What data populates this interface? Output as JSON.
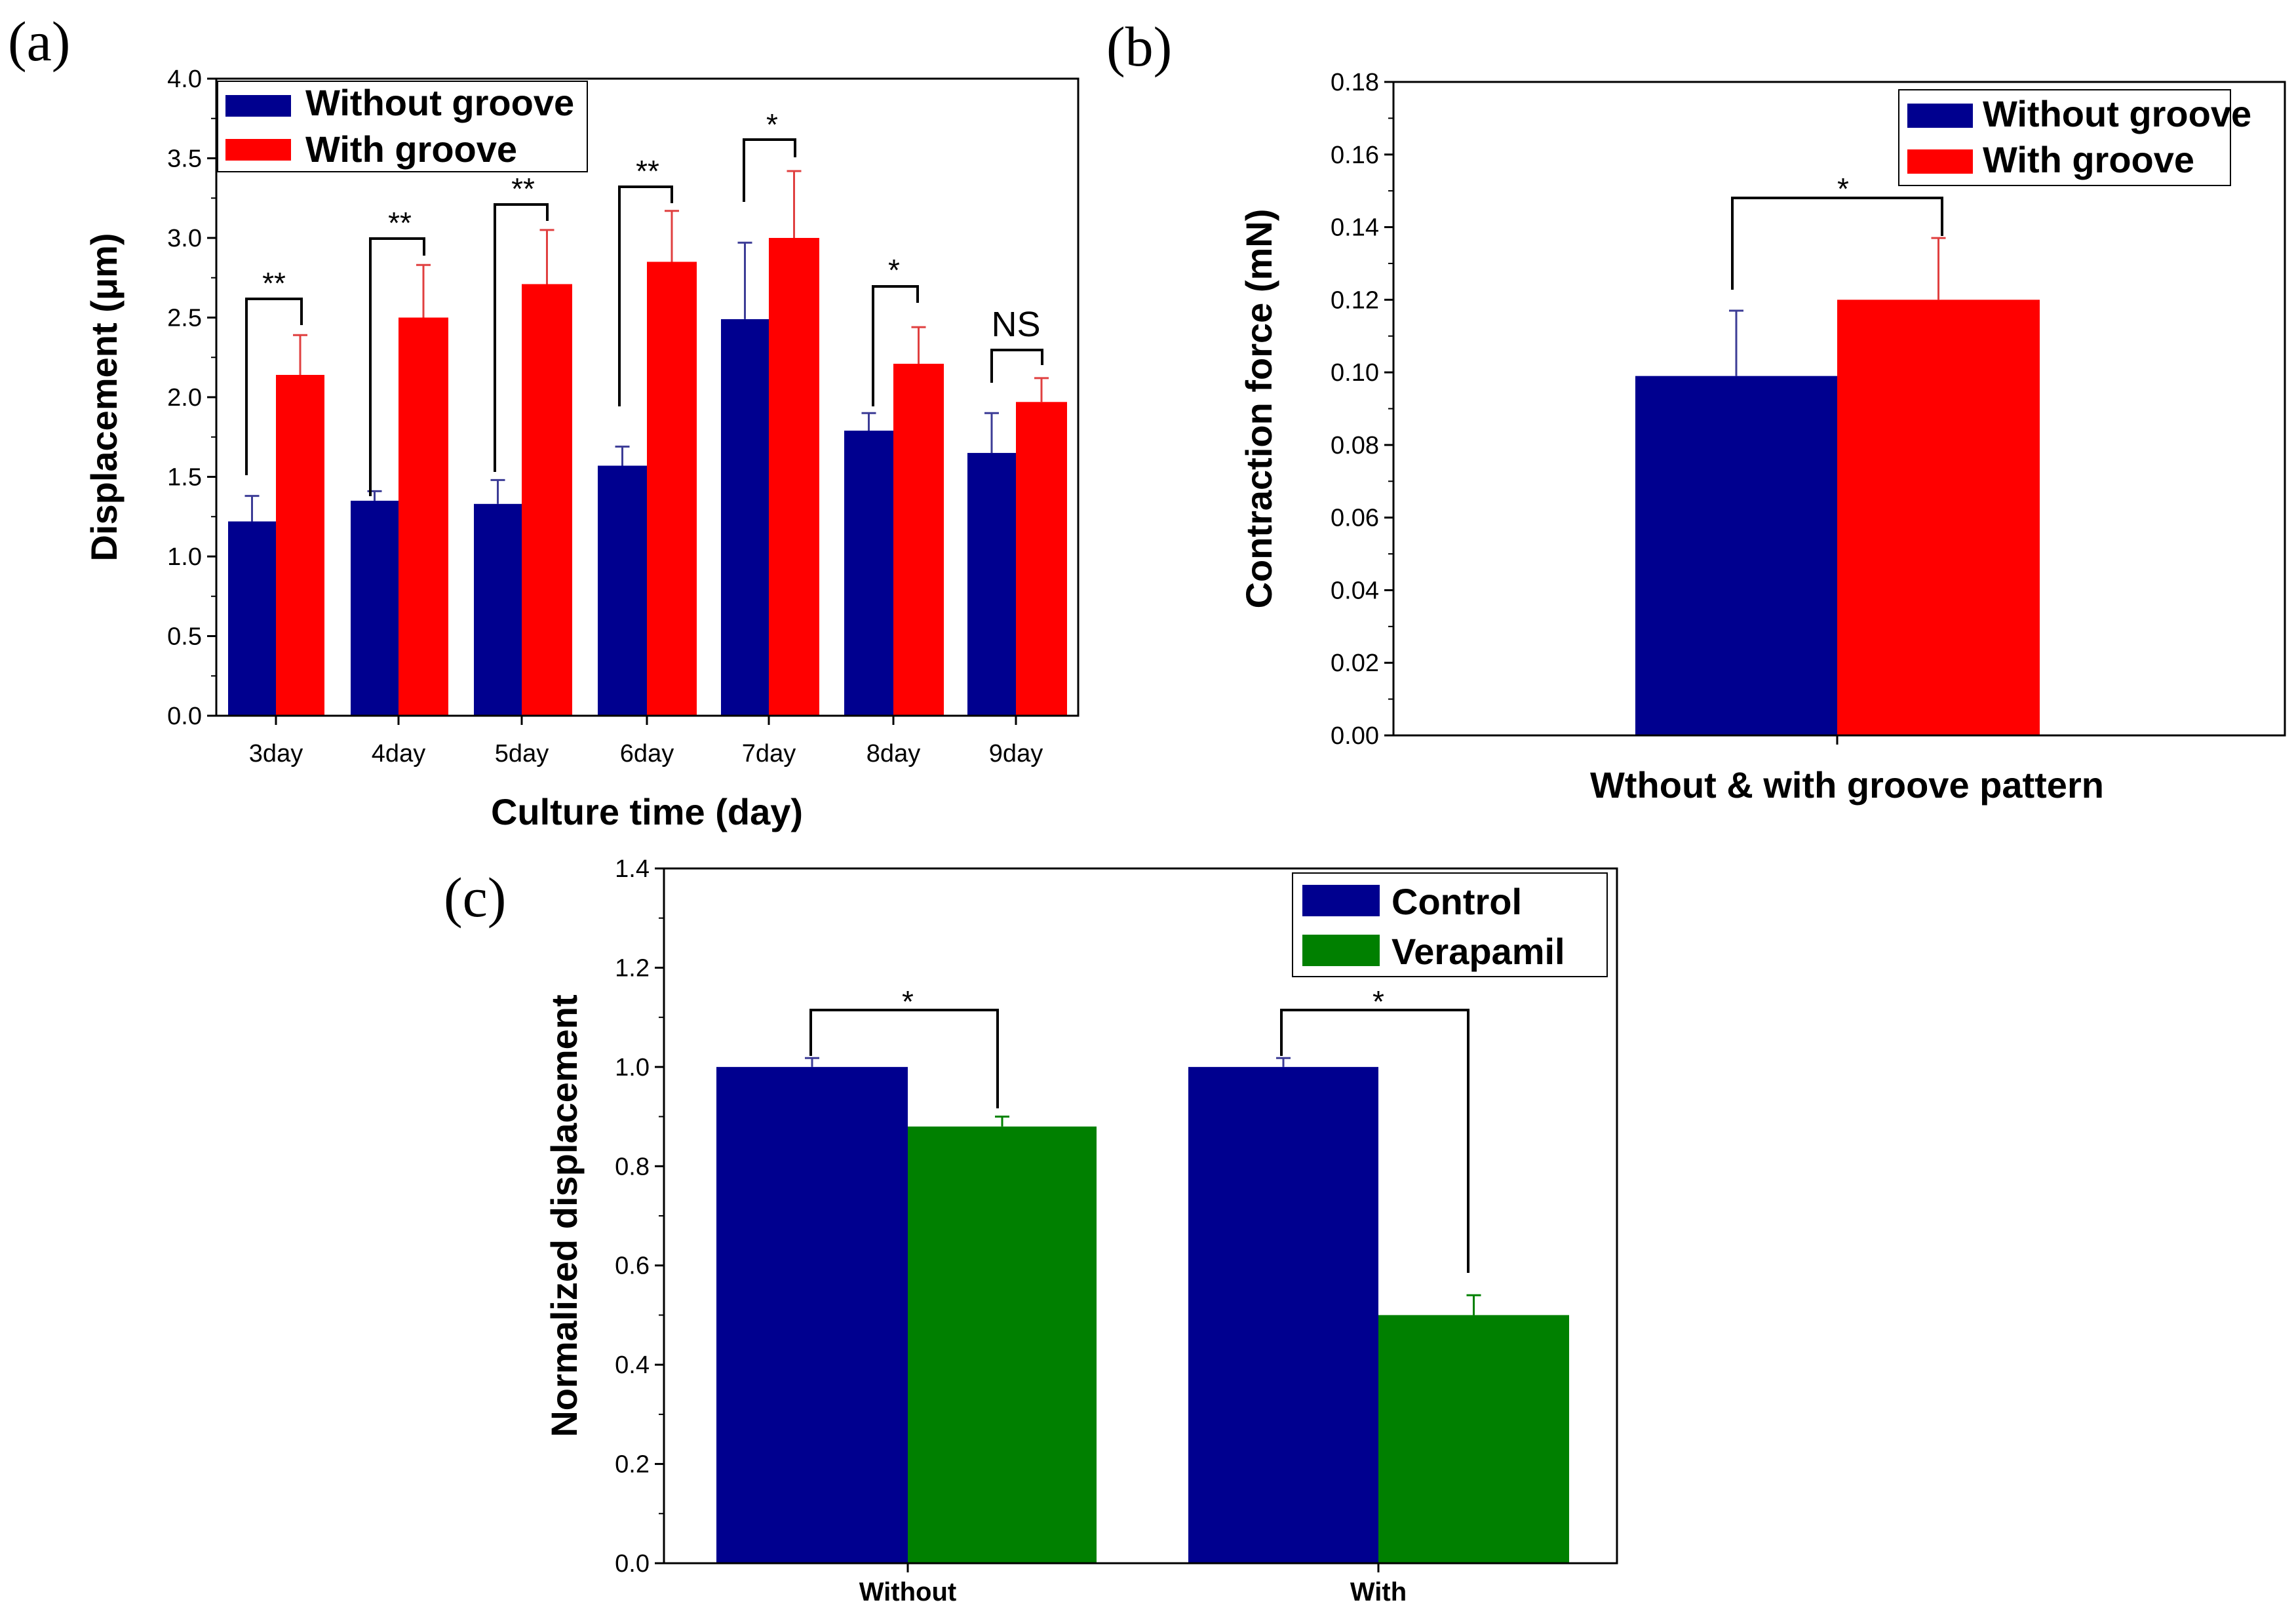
{
  "colors": {
    "navy": "#00008F",
    "red": "#FF0000",
    "green": "#008000",
    "err_navy": "#3C3C96",
    "err_red": "#E04040",
    "err_green": "#008000"
  },
  "chart_data": [
    {
      "id": "a",
      "panel_label": "(a)",
      "type": "bar",
      "xlabel": "Culture time (day)",
      "ylabel": "Displacement (μm)",
      "ylim": [
        0,
        4.0
      ],
      "yticks": [
        "0.0",
        "0.5",
        "1.0",
        "1.5",
        "2.0",
        "2.5",
        "3.0",
        "3.5",
        "4.0"
      ],
      "categories": [
        "3day",
        "4day",
        "5day",
        "6day",
        "7day",
        "8day",
        "9day"
      ],
      "series": [
        {
          "name": "Without groove",
          "color": "#00008F",
          "err_color": "#3C3C96",
          "values": [
            1.22,
            1.35,
            1.33,
            1.57,
            2.49,
            1.79,
            1.65
          ],
          "errors": [
            0.16,
            0.06,
            0.15,
            0.12,
            0.48,
            0.11,
            0.25
          ]
        },
        {
          "name": "With groove",
          "color": "#FF0000",
          "err_color": "#E04040",
          "values": [
            2.14,
            2.5,
            2.71,
            2.85,
            3.0,
            2.21,
            1.97
          ],
          "errors": [
            0.25,
            0.33,
            0.34,
            0.32,
            0.42,
            0.23,
            0.15
          ]
        }
      ],
      "legend": "top-left",
      "significance": [
        "**",
        "**",
        "**",
        "**",
        "*",
        "*",
        "NS"
      ]
    },
    {
      "id": "b",
      "panel_label": "(b)",
      "type": "bar",
      "xlabel": "Wthout & with groove pattern",
      "ylabel": "Contraction force (mN)",
      "ylim": [
        0,
        0.18
      ],
      "yticks": [
        "0.00",
        "0.02",
        "0.04",
        "0.06",
        "0.08",
        "0.10",
        "0.12",
        "0.14",
        "0.16",
        "0.18"
      ],
      "categories": [
        ""
      ],
      "series": [
        {
          "name": "Without groove",
          "color": "#00008F",
          "err_color": "#3C3C96",
          "values": [
            0.099
          ],
          "errors": [
            0.018
          ]
        },
        {
          "name": "With groove",
          "color": "#FF0000",
          "err_color": "#E04040",
          "values": [
            0.12
          ],
          "errors": [
            0.017
          ]
        }
      ],
      "legend": "top-right",
      "significance": [
        "*"
      ]
    },
    {
      "id": "c",
      "panel_label": "(c)",
      "type": "bar",
      "xlabel": "",
      "ylabel": "Normalized displacement",
      "ylim": [
        0,
        1.4
      ],
      "yticks": [
        "0.0",
        "0.2",
        "0.4",
        "0.6",
        "0.8",
        "1.0",
        "1.2",
        "1.4"
      ],
      "categories": [
        "Without",
        "With"
      ],
      "series": [
        {
          "name": "Control",
          "color": "#00008F",
          "err_color": "#3C3C96",
          "values": [
            1.0,
            1.0
          ],
          "errors": [
            0.018,
            0.018
          ]
        },
        {
          "name": "Verapamil",
          "color": "#008000",
          "err_color": "#008000",
          "values": [
            0.88,
            0.5
          ],
          "errors": [
            0.02,
            0.04
          ]
        }
      ],
      "legend": "top-right",
      "significance": [
        "*",
        "*"
      ]
    }
  ]
}
